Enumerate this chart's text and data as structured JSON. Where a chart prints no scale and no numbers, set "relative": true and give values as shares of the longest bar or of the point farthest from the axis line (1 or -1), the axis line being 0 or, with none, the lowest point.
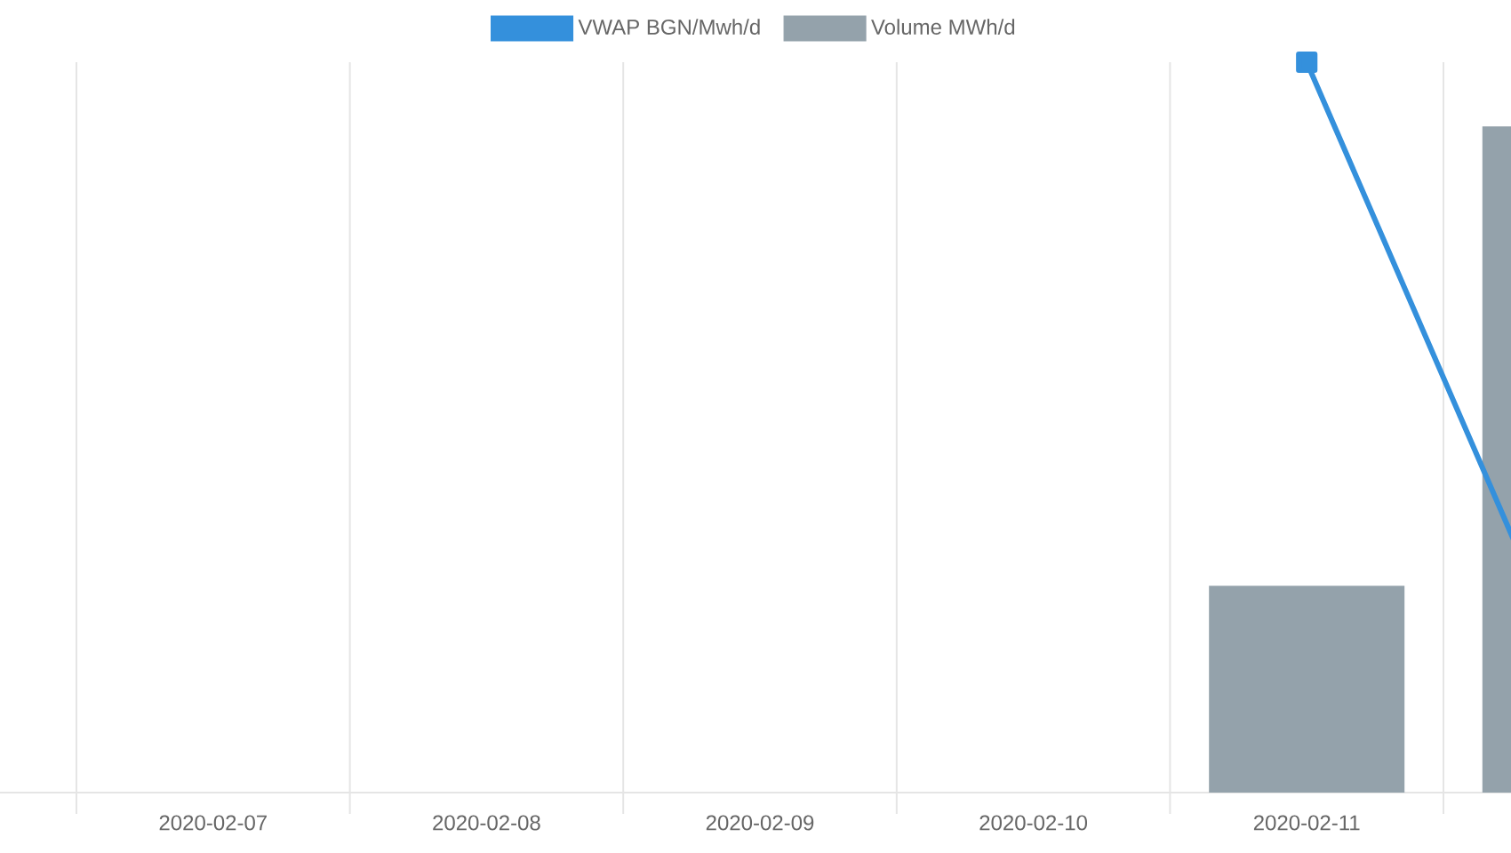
{
  "chart_data": {
    "type": "bar",
    "relative": true,
    "categories": [
      "2020-02-07",
      "2020-02-08",
      "2020-02-09",
      "2020-02-10",
      "2020-02-11",
      null
    ],
    "series": [
      {
        "name": "VWAP BGN/Mwh/d",
        "type": "line",
        "color": "#3490dc",
        "marker": "square",
        "values": [
          null,
          null,
          null,
          null,
          1,
          0.136
        ]
      },
      {
        "name": "Volume MWh/d",
        "color": "#94a2ab",
        "values": [
          null,
          null,
          null,
          null,
          0.283,
          0.912
        ]
      }
    ],
    "grid": "x",
    "legend": "top"
  }
}
